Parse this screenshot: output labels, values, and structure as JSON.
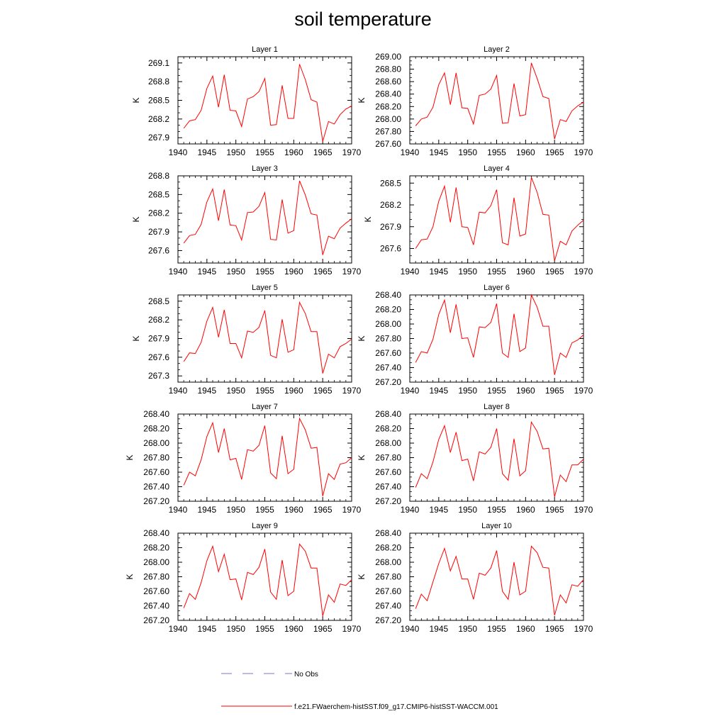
{
  "title": "soil temperature",
  "legend": {
    "items": [
      {
        "label": "No Obs",
        "color": "#7777cc",
        "style": "dashed"
      },
      {
        "label": "f.e21.FWaerchem-histSST.f09_g17.CMIP6-histSST-WACCM.001",
        "color": "#ff0000",
        "style": "solid"
      }
    ]
  },
  "chart_data": [
    {
      "type": "line",
      "title": "Layer 1",
      "ylabel": "K",
      "xlim": [
        1940,
        1970
      ],
      "ylim": [
        267.8,
        269.2
      ],
      "xticks": [
        "1940",
        "1945",
        "1950",
        "1955",
        "1960",
        "1965",
        "1970"
      ],
      "yticks": [
        "267.9",
        "268.2",
        "268.5",
        "268.8",
        "269.1"
      ],
      "x": [
        1941,
        1942,
        1943,
        1944,
        1945,
        1946,
        1947,
        1948,
        1949,
        1950,
        1951,
        1952,
        1953,
        1954,
        1955,
        1956,
        1957,
        1958,
        1959,
        1960,
        1961,
        1962,
        1963,
        1964,
        1965,
        1966,
        1967,
        1968,
        1969,
        1970
      ],
      "series": [
        {
          "color": "#ff0000",
          "values": [
            268.05,
            268.17,
            268.19,
            268.34,
            268.69,
            268.89,
            268.39,
            268.91,
            268.34,
            268.33,
            268.08,
            268.52,
            268.56,
            268.64,
            268.85,
            268.1,
            268.11,
            268.74,
            268.21,
            268.21,
            269.08,
            268.83,
            268.51,
            268.47,
            267.84,
            268.16,
            268.12,
            268.27,
            268.36,
            268.41
          ]
        }
      ]
    },
    {
      "type": "line",
      "title": "Layer 2",
      "ylabel": "K",
      "xlim": [
        1940,
        1970
      ],
      "ylim": [
        267.6,
        269.0
      ],
      "xticks": [
        "1940",
        "1945",
        "1950",
        "1955",
        "1960",
        "1965",
        "1970"
      ],
      "yticks": [
        "267.60",
        "267.80",
        "268.00",
        "268.20",
        "268.40",
        "268.60",
        "268.80",
        "269.00"
      ],
      "x": [
        1941,
        1942,
        1943,
        1944,
        1945,
        1946,
        1947,
        1948,
        1949,
        1950,
        1951,
        1952,
        1953,
        1954,
        1955,
        1956,
        1957,
        1958,
        1959,
        1960,
        1961,
        1962,
        1963,
        1964,
        1965,
        1966,
        1967,
        1968,
        1969,
        1970
      ],
      "series": [
        {
          "color": "#ff0000",
          "values": [
            267.89,
            268.0,
            268.03,
            268.19,
            268.55,
            268.74,
            268.23,
            268.74,
            268.18,
            268.17,
            267.92,
            268.38,
            268.4,
            268.48,
            268.7,
            267.93,
            267.94,
            268.57,
            268.05,
            268.07,
            268.9,
            268.65,
            268.36,
            268.33,
            267.68,
            267.99,
            267.96,
            268.13,
            268.21,
            268.27
          ]
        }
      ]
    },
    {
      "type": "line",
      "title": "Layer 3",
      "ylabel": "K",
      "xlim": [
        1940,
        1970
      ],
      "ylim": [
        267.4,
        268.8
      ],
      "xticks": [
        "1940",
        "1945",
        "1950",
        "1955",
        "1960",
        "1965",
        "1970"
      ],
      "yticks": [
        "267.6",
        "267.9",
        "268.2",
        "268.5",
        "268.8"
      ],
      "x": [
        1941,
        1942,
        1943,
        1944,
        1945,
        1946,
        1947,
        1948,
        1949,
        1950,
        1951,
        1952,
        1953,
        1954,
        1955,
        1956,
        1957,
        1958,
        1959,
        1960,
        1961,
        1962,
        1963,
        1964,
        1965,
        1966,
        1967,
        1968,
        1969,
        1970
      ],
      "series": [
        {
          "color": "#ff0000",
          "values": [
            267.72,
            267.84,
            267.86,
            268.02,
            268.38,
            268.59,
            268.08,
            268.58,
            268.01,
            268.0,
            267.77,
            268.21,
            268.22,
            268.31,
            268.53,
            267.78,
            267.77,
            268.42,
            267.88,
            267.92,
            268.72,
            268.49,
            268.19,
            268.17,
            267.53,
            267.83,
            267.79,
            267.96,
            268.04,
            268.11
          ]
        }
      ]
    },
    {
      "type": "line",
      "title": "Layer 4",
      "ylabel": "K",
      "xlim": [
        1940,
        1970
      ],
      "ylim": [
        267.4,
        268.6
      ],
      "xticks": [
        "1940",
        "1945",
        "1950",
        "1955",
        "1960",
        "1965",
        "1970"
      ],
      "yticks": [
        "267.6",
        "267.9",
        "268.2",
        "268.5"
      ],
      "x": [
        1941,
        1942,
        1943,
        1944,
        1945,
        1946,
        1947,
        1948,
        1949,
        1950,
        1951,
        1952,
        1953,
        1954,
        1955,
        1956,
        1957,
        1958,
        1959,
        1960,
        1961,
        1962,
        1963,
        1964,
        1965,
        1966,
        1967,
        1968,
        1969,
        1970
      ],
      "series": [
        {
          "color": "#ff0000",
          "values": [
            267.6,
            267.72,
            267.73,
            267.9,
            268.25,
            268.46,
            267.96,
            268.44,
            267.9,
            267.89,
            267.65,
            268.1,
            268.09,
            268.19,
            268.41,
            267.68,
            267.65,
            268.3,
            267.77,
            267.8,
            268.58,
            268.37,
            268.07,
            268.06,
            267.43,
            267.7,
            267.65,
            267.84,
            267.92,
            267.99
          ]
        }
      ]
    },
    {
      "type": "line",
      "title": "Layer 5",
      "ylabel": "K",
      "xlim": [
        1940,
        1970
      ],
      "ylim": [
        267.2,
        268.6
      ],
      "xticks": [
        "1940",
        "1945",
        "1950",
        "1955",
        "1960",
        "1965",
        "1970"
      ],
      "yticks": [
        "267.3",
        "267.6",
        "267.9",
        "268.2",
        "268.5"
      ],
      "x": [
        1941,
        1942,
        1943,
        1944,
        1945,
        1946,
        1947,
        1948,
        1949,
        1950,
        1951,
        1952,
        1953,
        1954,
        1955,
        1956,
        1957,
        1958,
        1959,
        1960,
        1961,
        1962,
        1963,
        1964,
        1965,
        1966,
        1967,
        1968,
        1969,
        1970
      ],
      "series": [
        {
          "color": "#ff0000",
          "values": [
            267.53,
            267.67,
            267.66,
            267.84,
            268.18,
            268.4,
            267.92,
            268.36,
            267.82,
            267.82,
            267.59,
            268.02,
            268.0,
            268.08,
            268.35,
            267.63,
            267.59,
            268.21,
            267.68,
            267.72,
            268.48,
            268.3,
            268.01,
            268.01,
            267.34,
            267.65,
            267.59,
            267.77,
            267.82,
            267.89
          ]
        }
      ]
    },
    {
      "type": "line",
      "title": "Layer 6",
      "ylabel": "K",
      "xlim": [
        1940,
        1970
      ],
      "ylim": [
        267.2,
        268.4
      ],
      "xticks": [
        "1940",
        "1945",
        "1950",
        "1955",
        "1960",
        "1965",
        "1970"
      ],
      "yticks": [
        "267.20",
        "267.40",
        "267.60",
        "267.80",
        "268.00",
        "268.20",
        "268.40"
      ],
      "x": [
        1941,
        1942,
        1943,
        1944,
        1945,
        1946,
        1947,
        1948,
        1949,
        1950,
        1951,
        1952,
        1953,
        1954,
        1955,
        1956,
        1957,
        1958,
        1959,
        1960,
        1961,
        1962,
        1963,
        1964,
        1965,
        1966,
        1967,
        1968,
        1969,
        1970
      ],
      "series": [
        {
          "color": "#ff0000",
          "values": [
            267.47,
            267.62,
            267.6,
            267.79,
            268.13,
            268.33,
            267.88,
            268.27,
            267.8,
            267.81,
            267.54,
            267.96,
            267.95,
            268.02,
            268.28,
            267.6,
            267.54,
            268.14,
            267.62,
            267.67,
            268.4,
            268.23,
            267.97,
            267.97,
            267.3,
            267.6,
            267.54,
            267.74,
            267.78,
            267.85
          ]
        }
      ]
    },
    {
      "type": "line",
      "title": "Layer 7",
      "ylabel": "K",
      "xlim": [
        1940,
        1970
      ],
      "ylim": [
        267.2,
        268.4
      ],
      "xticks": [
        "1940",
        "1945",
        "1950",
        "1955",
        "1960",
        "1965",
        "1970"
      ],
      "yticks": [
        "267.20",
        "267.40",
        "267.60",
        "267.80",
        "268.00",
        "268.20",
        "268.40"
      ],
      "x": [
        1941,
        1942,
        1943,
        1944,
        1945,
        1946,
        1947,
        1948,
        1949,
        1950,
        1951,
        1952,
        1953,
        1954,
        1955,
        1956,
        1957,
        1958,
        1959,
        1960,
        1961,
        1962,
        1963,
        1964,
        1965,
        1966,
        1967,
        1968,
        1969,
        1970
      ],
      "series": [
        {
          "color": "#ff0000",
          "values": [
            267.42,
            267.6,
            267.55,
            267.77,
            268.09,
            268.28,
            267.87,
            268.2,
            267.77,
            267.79,
            267.5,
            267.91,
            267.89,
            267.97,
            268.24,
            267.59,
            267.51,
            268.1,
            267.58,
            267.64,
            268.34,
            268.18,
            267.93,
            267.94,
            267.27,
            267.58,
            267.5,
            267.71,
            267.73,
            267.8
          ]
        }
      ]
    },
    {
      "type": "line",
      "title": "Layer 8",
      "ylabel": "K",
      "xlim": [
        1940,
        1970
      ],
      "ylim": [
        267.2,
        268.4
      ],
      "xticks": [
        "1940",
        "1945",
        "1950",
        "1955",
        "1960",
        "1965",
        "1970"
      ],
      "yticks": [
        "267.20",
        "267.40",
        "267.60",
        "267.80",
        "268.00",
        "268.20",
        "268.40"
      ],
      "x": [
        1941,
        1942,
        1943,
        1944,
        1945,
        1946,
        1947,
        1948,
        1949,
        1950,
        1951,
        1952,
        1953,
        1954,
        1955,
        1956,
        1957,
        1958,
        1959,
        1960,
        1961,
        1962,
        1963,
        1964,
        1965,
        1966,
        1967,
        1968,
        1969,
        1970
      ],
      "series": [
        {
          "color": "#ff0000",
          "values": [
            267.39,
            267.58,
            267.51,
            267.74,
            268.05,
            268.24,
            267.87,
            268.15,
            267.76,
            267.78,
            267.48,
            267.88,
            267.85,
            267.94,
            268.2,
            267.58,
            267.49,
            268.06,
            267.55,
            267.62,
            268.29,
            268.16,
            267.92,
            267.93,
            267.26,
            267.56,
            267.47,
            267.7,
            267.7,
            267.78
          ]
        }
      ]
    },
    {
      "type": "line",
      "title": "Layer 9",
      "ylabel": "K",
      "xlim": [
        1940,
        1970
      ],
      "ylim": [
        267.2,
        268.4
      ],
      "xticks": [
        "1940",
        "1945",
        "1950",
        "1955",
        "1960",
        "1965",
        "1970"
      ],
      "yticks": [
        "267.20",
        "267.40",
        "267.60",
        "267.80",
        "268.00",
        "268.20",
        "268.40"
      ],
      "x": [
        1941,
        1942,
        1943,
        1944,
        1945,
        1946,
        1947,
        1948,
        1949,
        1950,
        1951,
        1952,
        1953,
        1954,
        1955,
        1956,
        1957,
        1958,
        1959,
        1960,
        1961,
        1962,
        1963,
        1964,
        1965,
        1966,
        1967,
        1968,
        1969,
        1970
      ],
      "series": [
        {
          "color": "#ff0000",
          "values": [
            267.37,
            267.57,
            267.49,
            267.72,
            268.02,
            268.22,
            267.87,
            268.11,
            267.76,
            267.77,
            267.48,
            267.86,
            267.83,
            267.93,
            268.18,
            267.59,
            267.49,
            268.03,
            267.54,
            267.6,
            268.25,
            268.15,
            267.92,
            267.92,
            267.26,
            267.55,
            267.45,
            267.7,
            267.68,
            267.76
          ]
        }
      ]
    },
    {
      "type": "line",
      "title": "Layer 10",
      "ylabel": "K",
      "xlim": [
        1940,
        1970
      ],
      "ylim": [
        267.2,
        268.4
      ],
      "xticks": [
        "1940",
        "1945",
        "1950",
        "1955",
        "1960",
        "1965",
        "1970"
      ],
      "yticks": [
        "267.20",
        "267.40",
        "267.60",
        "267.80",
        "268.00",
        "268.20",
        "268.40"
      ],
      "x": [
        1941,
        1942,
        1943,
        1944,
        1945,
        1946,
        1947,
        1948,
        1949,
        1950,
        1951,
        1952,
        1953,
        1954,
        1955,
        1956,
        1957,
        1958,
        1959,
        1960,
        1961,
        1962,
        1963,
        1964,
        1965,
        1966,
        1967,
        1968,
        1969,
        1970
      ],
      "series": [
        {
          "color": "#ff0000",
          "values": [
            267.36,
            267.56,
            267.47,
            267.73,
            267.98,
            268.19,
            267.88,
            268.08,
            267.77,
            267.77,
            267.49,
            267.85,
            267.82,
            267.92,
            268.16,
            267.6,
            267.49,
            268.0,
            267.55,
            267.6,
            268.22,
            268.13,
            267.93,
            267.92,
            267.27,
            267.55,
            267.44,
            267.69,
            267.67,
            267.76
          ]
        }
      ]
    }
  ]
}
